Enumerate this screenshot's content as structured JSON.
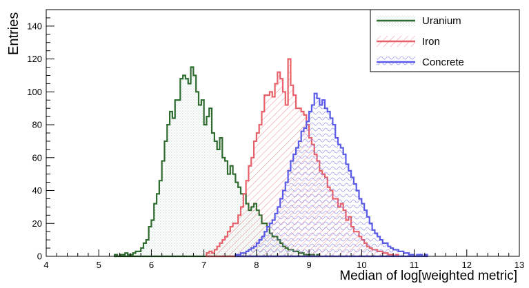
{
  "chart_data": {
    "type": "histogram",
    "xlabel": "Median of log[weighted metric]",
    "ylabel": "Entries",
    "xlim": [
      4,
      13
    ],
    "ylim": [
      0,
      150
    ],
    "xticks": [
      4,
      5,
      6,
      7,
      8,
      9,
      10,
      11,
      12,
      13
    ],
    "yticks": [
      0,
      20,
      40,
      60,
      80,
      100,
      120,
      140
    ],
    "grid": false,
    "legend_position": "top-right",
    "bin_width": 0.05,
    "series": [
      {
        "name": "Uranium",
        "color": "#2e6b2e",
        "fill": "dotted",
        "start": 5.3,
        "values": [
          1,
          0,
          1,
          1,
          2,
          1,
          1,
          2,
          3,
          3,
          5,
          8,
          10,
          18,
          22,
          32,
          38,
          46,
          58,
          70,
          80,
          88,
          84,
          95,
          95,
          108,
          110,
          108,
          105,
          115,
          110,
          100,
          92,
          95,
          80,
          85,
          90,
          75,
          70,
          65,
          72,
          60,
          58,
          50,
          55,
          50,
          45,
          42,
          38,
          38,
          32,
          28,
          30,
          32,
          28,
          25,
          20,
          20,
          18,
          14,
          12,
          12,
          10,
          8,
          6,
          5,
          4,
          4,
          3,
          3,
          2,
          2,
          1,
          1,
          1,
          1,
          0,
          1
        ]
      },
      {
        "name": "Iron",
        "color": "#e8606a",
        "fill": "hatched",
        "start": 7.05,
        "values": [
          2,
          3,
          2,
          4,
          6,
          8,
          10,
          12,
          15,
          18,
          20,
          20,
          25,
          30,
          38,
          46,
          55,
          60,
          70,
          75,
          80,
          88,
          98,
          98,
          100,
          97,
          105,
          112,
          108,
          100,
          92,
          120,
          104,
          98,
          90,
          90,
          88,
          86,
          80,
          72,
          68,
          62,
          58,
          52,
          50,
          48,
          42,
          40,
          35,
          35,
          30,
          32,
          28,
          22,
          24,
          18,
          15,
          15,
          12,
          10,
          8,
          6,
          5,
          4,
          4,
          3,
          3,
          2,
          2,
          1,
          1,
          0,
          1
        ]
      },
      {
        "name": "Concrete",
        "color": "#5a5ae8",
        "fill": "wavy",
        "start": 7.6,
        "values": [
          1,
          1,
          2,
          2,
          3,
          4,
          5,
          6,
          8,
          10,
          12,
          15,
          18,
          20,
          22,
          26,
          30,
          35,
          40,
          45,
          52,
          58,
          62,
          66,
          70,
          76,
          78,
          82,
          88,
          92,
          99,
          96,
          92,
          95,
          90,
          88,
          84,
          80,
          72,
          68,
          66,
          62,
          56,
          52,
          48,
          44,
          40,
          35,
          32,
          28,
          24,
          20,
          16,
          14,
          12,
          10,
          8,
          8,
          6,
          5,
          4,
          4,
          3,
          3,
          2,
          2,
          1,
          1,
          0,
          1,
          1,
          0,
          1
        ]
      }
    ]
  }
}
